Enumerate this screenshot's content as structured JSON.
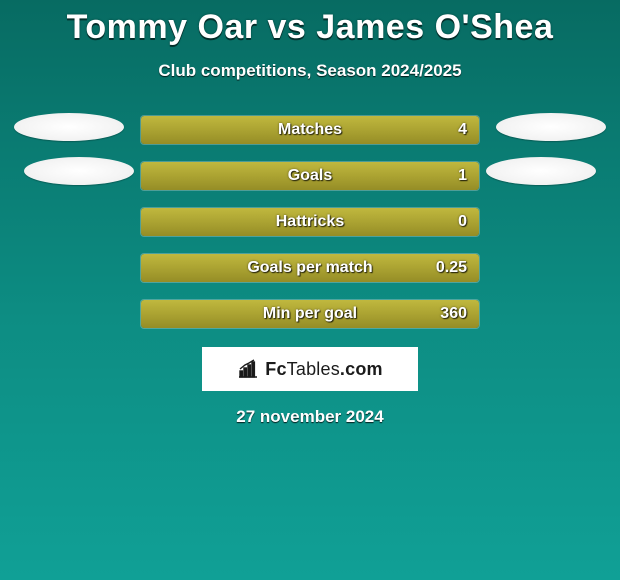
{
  "title": "Tommy Oar vs James O'Shea",
  "subtitle": "Club competitions, Season 2024/2025",
  "date": "27 november 2024",
  "logo_text_a": "Fc",
  "logo_text_b": "Tables",
  "logo_text_c": ".com",
  "bar_fill_color": "#aba332",
  "background_gradient_top": "#076b62",
  "background_gradient_bottom": "#10a096",
  "stats": [
    {
      "label": "Matches",
      "value": "4",
      "fill_pct": 100,
      "left_oval": true,
      "right_oval": true,
      "oval_class": "1"
    },
    {
      "label": "Goals",
      "value": "1",
      "fill_pct": 100,
      "left_oval": true,
      "right_oval": true,
      "oval_class": "2"
    },
    {
      "label": "Hattricks",
      "value": "0",
      "fill_pct": 100,
      "left_oval": false,
      "right_oval": false,
      "oval_class": ""
    },
    {
      "label": "Goals per match",
      "value": "0.25",
      "fill_pct": 100,
      "left_oval": false,
      "right_oval": false,
      "oval_class": ""
    },
    {
      "label": "Min per goal",
      "value": "360",
      "fill_pct": 100,
      "left_oval": false,
      "right_oval": false,
      "oval_class": ""
    }
  ]
}
